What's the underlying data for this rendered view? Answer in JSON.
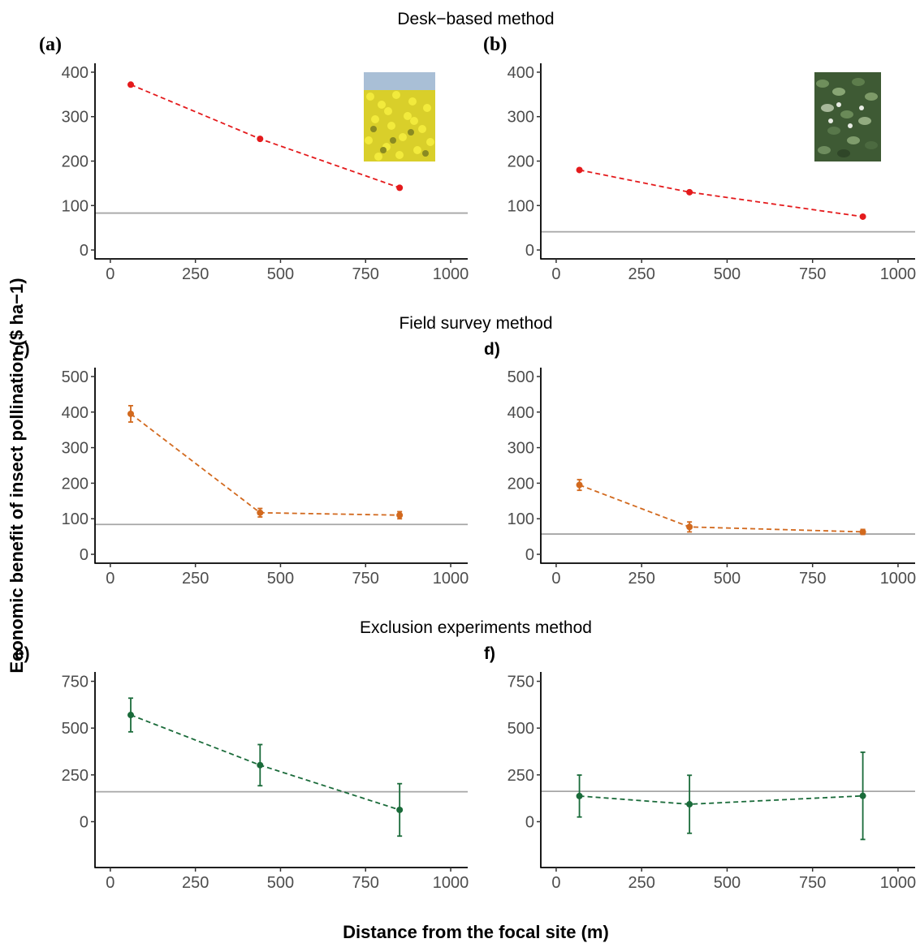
{
  "figure": {
    "ylabel": "Economic benefit of insect pollination ($ ha−1)",
    "xlabel": "Distance from the focal site (m)"
  },
  "sections": [
    {
      "title": "Desk−based method"
    },
    {
      "title": "Field survey method"
    },
    {
      "title": "Exclusion experiments method"
    }
  ],
  "colors": {
    "desk": "#e41a1c",
    "field": "#d2691e",
    "exclusion": "#1a6b3a",
    "baseline": "#a6a6a6",
    "axis": "#000000"
  },
  "chart_data": [
    {
      "panel": "(a)",
      "type": "line",
      "series_color": "desk",
      "x": [
        60,
        440,
        850
      ],
      "y": [
        372,
        250,
        140
      ],
      "err": null,
      "baseline": 83,
      "xlim": [
        -45,
        1050
      ],
      "ylim": [
        -20,
        420
      ],
      "yticks": [
        0,
        100,
        200,
        300,
        400
      ],
      "xticks": [
        0,
        250,
        500,
        750,
        1000
      ],
      "photo": "rapeseed-field-photo"
    },
    {
      "panel": "(b)",
      "type": "line",
      "series_color": "desk",
      "x": [
        68,
        390,
        897
      ],
      "y": [
        180,
        130,
        75
      ],
      "err": null,
      "baseline": 41,
      "xlim": [
        -45,
        1050
      ],
      "ylim": [
        -20,
        420
      ],
      "yticks": [
        0,
        100,
        200,
        300,
        400
      ],
      "xticks": [
        0,
        250,
        500,
        750,
        1000
      ],
      "photo": "faba-bean-plant-photo"
    },
    {
      "panel": "c)",
      "type": "line",
      "series_color": "field",
      "x": [
        60,
        440,
        850
      ],
      "y": [
        395,
        117,
        110
      ],
      "err": [
        23,
        12,
        10
      ],
      "baseline": 84,
      "xlim": [
        -45,
        1050
      ],
      "ylim": [
        -25,
        525
      ],
      "yticks": [
        0,
        100,
        200,
        300,
        400,
        500
      ],
      "xticks": [
        0,
        250,
        500,
        750,
        1000
      ]
    },
    {
      "panel": "d)",
      "type": "line",
      "series_color": "field",
      "x": [
        68,
        390,
        897
      ],
      "y": [
        195,
        77,
        63
      ],
      "err": [
        15,
        14,
        7
      ],
      "baseline": 57,
      "xlim": [
        -45,
        1050
      ],
      "ylim": [
        -25,
        525
      ],
      "yticks": [
        0,
        100,
        200,
        300,
        400,
        500
      ],
      "xticks": [
        0,
        250,
        500,
        750,
        1000
      ]
    },
    {
      "panel": "e)",
      "type": "line",
      "series_color": "exclusion",
      "x": [
        60,
        440,
        850
      ],
      "y": [
        570,
        302,
        63
      ],
      "err": [
        90,
        110,
        140
      ],
      "baseline": 160,
      "xlim": [
        -45,
        1050
      ],
      "ylim": [
        -245,
        800
      ],
      "yticks": [
        0,
        250,
        500,
        750
      ],
      "xticks": [
        0,
        250,
        500,
        750,
        1000
      ]
    },
    {
      "panel": "f)",
      "type": "line",
      "series_color": "exclusion",
      "x": [
        68,
        390,
        897
      ],
      "y": [
        137,
        93,
        138
      ],
      "err": [
        112,
        155,
        233
      ],
      "baseline": 162,
      "xlim": [
        -45,
        1050
      ],
      "ylim": [
        -245,
        800
      ],
      "yticks": [
        0,
        250,
        500,
        750
      ],
      "xticks": [
        0,
        250,
        500,
        750,
        1000
      ]
    }
  ]
}
